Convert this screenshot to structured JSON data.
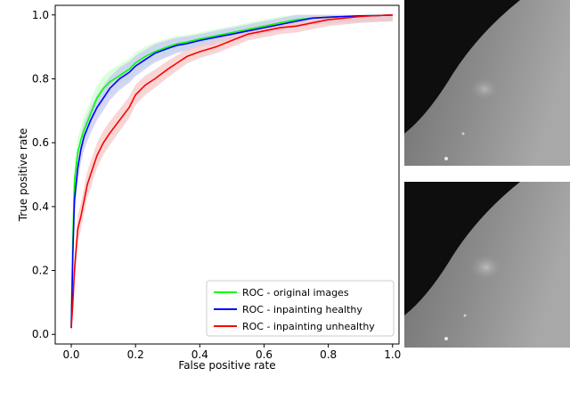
{
  "chart_data": {
    "type": "line",
    "title": "",
    "xlabel": "False positive rate",
    "ylabel": "True positive rate",
    "xlim": [
      -0.05,
      1.02
    ],
    "ylim": [
      -0.03,
      1.03
    ],
    "xticks": [
      "0.0",
      "0.2",
      "0.4",
      "0.6",
      "0.8",
      "1.0"
    ],
    "yticks": [
      "0.0",
      "0.2",
      "0.4",
      "0.6",
      "0.8",
      "1.0"
    ],
    "grid": false,
    "legend_position": "lower-right",
    "series": [
      {
        "name": "ROC - original images",
        "color": "#00ff00",
        "band_color": "#ccffcc",
        "x": [
          0,
          0.005,
          0.01,
          0.02,
          0.03,
          0.04,
          0.06,
          0.08,
          0.1,
          0.12,
          0.15,
          0.18,
          0.2,
          0.23,
          0.26,
          0.3,
          0.33,
          0.36,
          0.4,
          0.45,
          0.5,
          0.55,
          0.6,
          0.65,
          0.7,
          0.75,
          0.8,
          0.85,
          0.9,
          0.95,
          1.0
        ],
        "y": [
          0.02,
          0.3,
          0.48,
          0.57,
          0.61,
          0.64,
          0.69,
          0.74,
          0.77,
          0.79,
          0.81,
          0.83,
          0.85,
          0.87,
          0.885,
          0.9,
          0.91,
          0.915,
          0.925,
          0.935,
          0.945,
          0.955,
          0.965,
          0.975,
          0.985,
          0.99,
          0.993,
          0.995,
          0.997,
          0.998,
          1.0
        ]
      },
      {
        "name": "ROC - inpainting healthy",
        "color": "#0000ff",
        "band_color": "#c8c8f5",
        "x": [
          0,
          0.005,
          0.01,
          0.02,
          0.03,
          0.04,
          0.06,
          0.08,
          0.1,
          0.12,
          0.15,
          0.18,
          0.2,
          0.23,
          0.26,
          0.3,
          0.33,
          0.36,
          0.4,
          0.45,
          0.5,
          0.55,
          0.6,
          0.65,
          0.7,
          0.75,
          0.8,
          0.85,
          0.9,
          0.95,
          1.0
        ],
        "y": [
          0.02,
          0.25,
          0.42,
          0.52,
          0.58,
          0.62,
          0.67,
          0.71,
          0.74,
          0.77,
          0.8,
          0.82,
          0.84,
          0.86,
          0.88,
          0.895,
          0.905,
          0.91,
          0.92,
          0.93,
          0.94,
          0.95,
          0.96,
          0.97,
          0.98,
          0.99,
          0.993,
          0.995,
          0.997,
          0.998,
          1.0
        ]
      },
      {
        "name": "ROC - inpainting unhealthy",
        "color": "#ff0000",
        "band_color": "#f5c8c8",
        "x": [
          0,
          0.005,
          0.01,
          0.02,
          0.03,
          0.04,
          0.05,
          0.06,
          0.08,
          0.1,
          0.12,
          0.15,
          0.18,
          0.2,
          0.23,
          0.26,
          0.3,
          0.33,
          0.36,
          0.4,
          0.45,
          0.5,
          0.55,
          0.6,
          0.65,
          0.7,
          0.75,
          0.8,
          0.85,
          0.9,
          0.95,
          1.0
        ],
        "y": [
          0.02,
          0.1,
          0.2,
          0.33,
          0.37,
          0.42,
          0.47,
          0.5,
          0.56,
          0.6,
          0.63,
          0.67,
          0.71,
          0.75,
          0.78,
          0.8,
          0.83,
          0.85,
          0.87,
          0.885,
          0.9,
          0.92,
          0.94,
          0.95,
          0.96,
          0.965,
          0.975,
          0.985,
          0.99,
          0.995,
          0.998,
          1.0
        ]
      }
    ]
  }
}
